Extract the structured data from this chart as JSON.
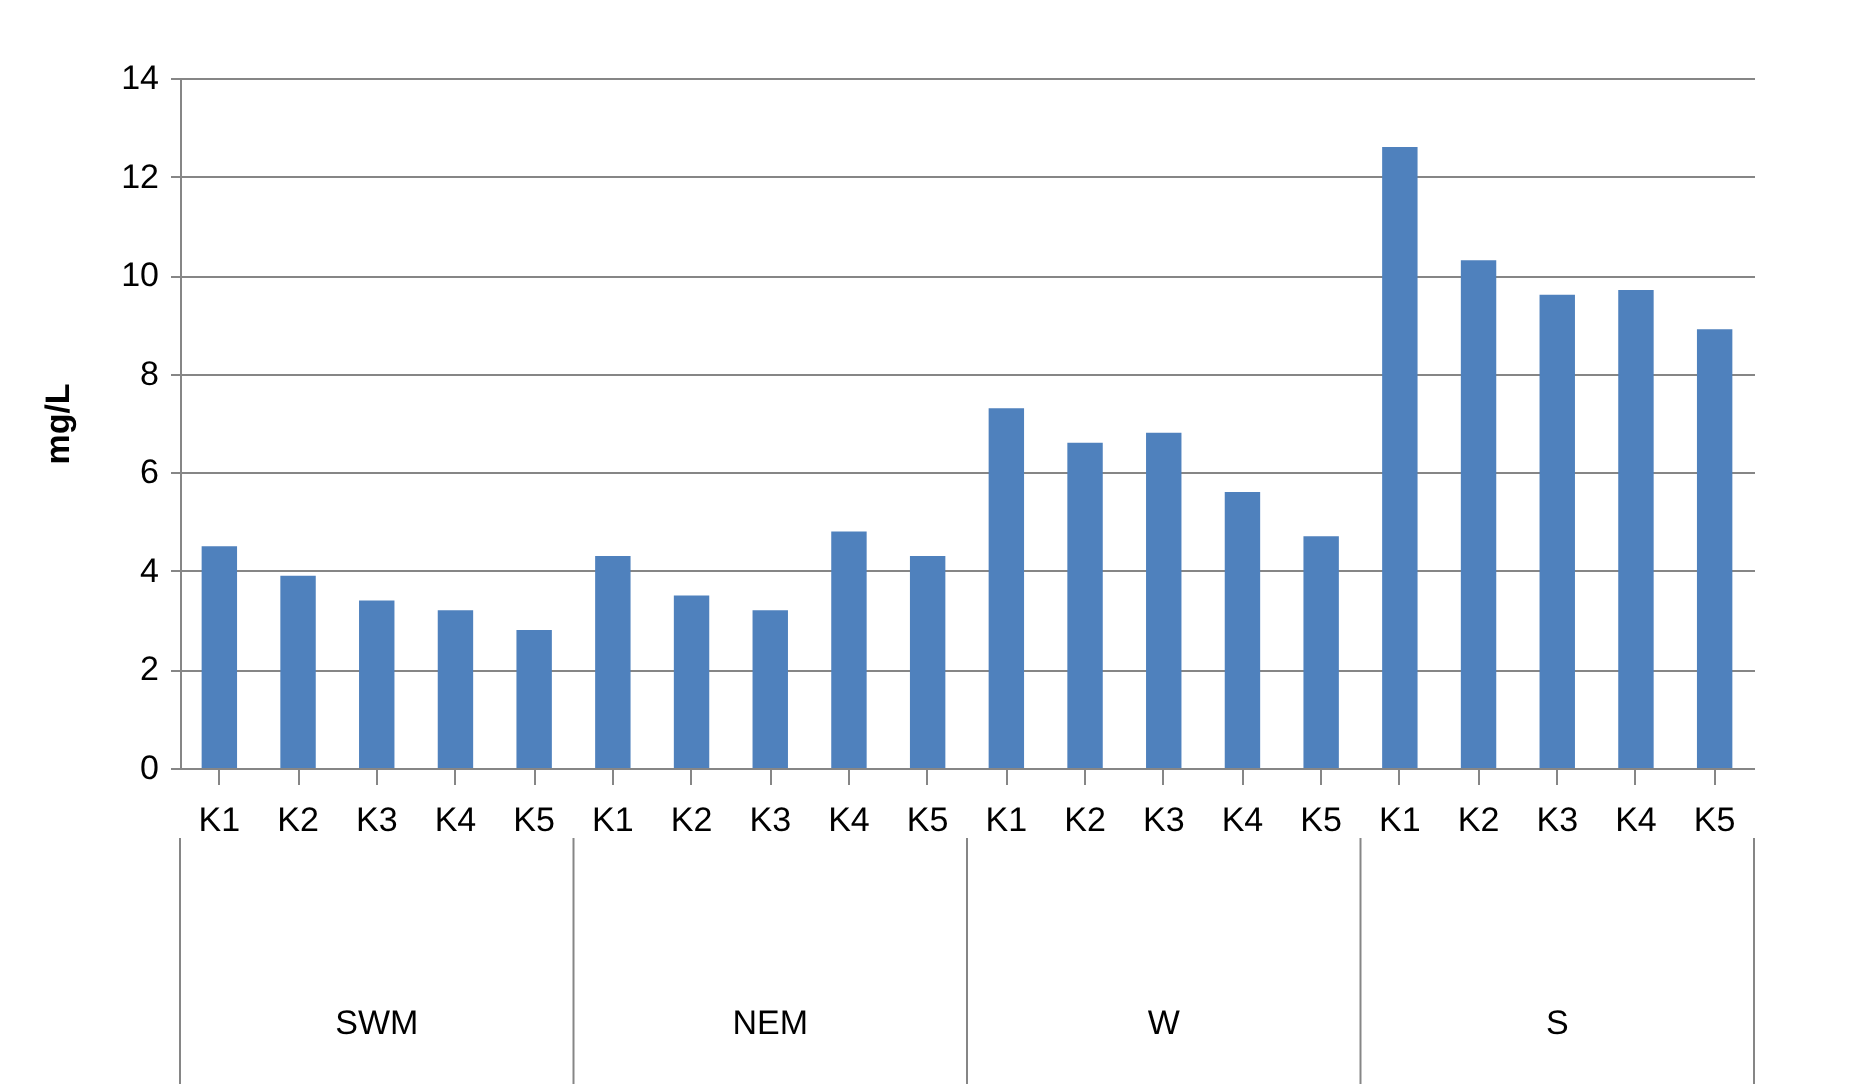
{
  "chart_data": {
    "type": "bar",
    "ylabel": "mg/L",
    "categories": [
      "K1",
      "K2",
      "K3",
      "K4",
      "K5",
      "K1",
      "K2",
      "K3",
      "K4",
      "K5",
      "K1",
      "K2",
      "K3",
      "K4",
      "K5",
      "K1",
      "K2",
      "K3",
      "K4",
      "K5"
    ],
    "series": [
      {
        "color": "#4f81bd",
        "values": [
          4.5,
          3.9,
          3.4,
          3.2,
          2.8,
          4.3,
          3.5,
          3.2,
          4.8,
          4.3,
          7.3,
          6.6,
          6.8,
          5.6,
          4.7,
          12.6,
          10.3,
          9.6,
          9.7,
          8.9
        ]
      }
    ],
    "ylim": [
      0,
      14
    ],
    "yticks": [
      0,
      2,
      4,
      6,
      8,
      10,
      12,
      14
    ],
    "grid": "y",
    "annotations": [
      "SWM",
      "NEM",
      "W",
      "S"
    ]
  }
}
